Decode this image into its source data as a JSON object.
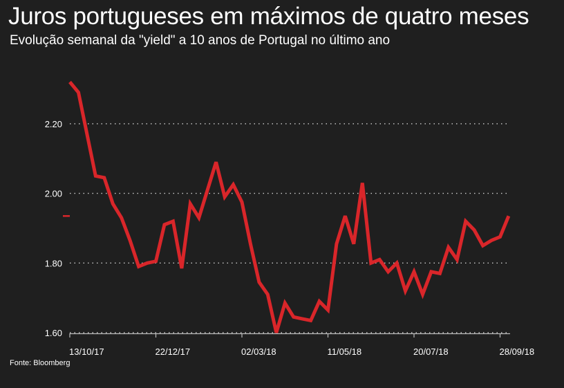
{
  "chart_data": {
    "type": "line",
    "title": "Juros portugueses em máximos de quatro meses",
    "subtitle": "Evolução semanal da \"yield\" a 10 anos de Portugal no último ano",
    "source": "Fonte: Bloomberg",
    "xlabel": "",
    "ylabel": "",
    "ylim": [
      1.6,
      2.33
    ],
    "yticks": [
      {
        "value": 1.6,
        "label": "1.60"
      },
      {
        "value": 1.8,
        "label": "1.80"
      },
      {
        "value": 2.0,
        "label": "2.00"
      },
      {
        "value": 2.2,
        "label": "2.20"
      }
    ],
    "xticks": [
      {
        "week": 0,
        "label": "13/10/17"
      },
      {
        "week": 10,
        "label": "22/12/17"
      },
      {
        "week": 20,
        "label": "02/03/18"
      },
      {
        "week": 30,
        "label": "11/05/18"
      },
      {
        "week": 40,
        "label": "20/07/18"
      },
      {
        "week": 50,
        "label": "28/09/18"
      }
    ],
    "grid": "horizontal-dotted",
    "series": [
      {
        "name": "Yield 10 anos Portugal",
        "color": "#d9262a",
        "values": [
          2.32,
          2.29,
          2.17,
          2.05,
          2.045,
          1.97,
          1.93,
          1.865,
          1.79,
          1.8,
          1.805,
          1.91,
          1.92,
          1.785,
          1.97,
          1.93,
          2.01,
          2.09,
          1.99,
          2.025,
          1.975,
          1.855,
          1.745,
          1.71,
          1.6,
          1.685,
          1.645,
          1.64,
          1.635,
          1.69,
          1.665,
          1.855,
          1.935,
          1.855,
          2.03,
          1.8,
          1.81,
          1.775,
          1.8,
          1.72,
          1.775,
          1.71,
          1.775,
          1.77,
          1.845,
          1.81,
          1.92,
          1.895,
          1.85,
          1.865,
          1.875,
          1.935
        ]
      }
    ],
    "last_value_marker": 1.935
  }
}
